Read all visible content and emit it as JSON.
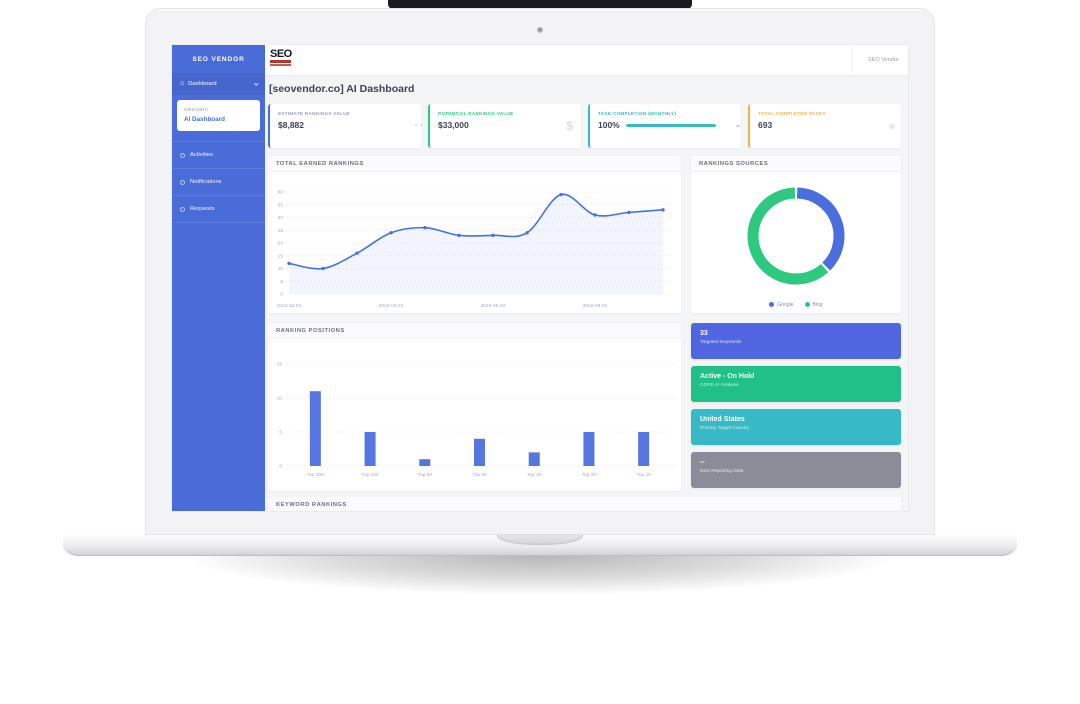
{
  "theme": {
    "sidebar_blue": "#4a6cd9",
    "accent_blue": "#4a6fdc",
    "accent_green": "#2dc97e",
    "accent_teal": "#38b9c6",
    "accent_orange": "#f0b24f"
  },
  "sidebar": {
    "brand": "SEO VENDOR",
    "menu": [
      {
        "label": "Dashboard",
        "icon": "home-icon",
        "expanded": true,
        "active": true
      }
    ],
    "submenu": {
      "section": "ORGANIC",
      "item": "AI Dashboard"
    },
    "items": [
      {
        "label": "Activities",
        "icon": "activities-icon"
      },
      {
        "label": "Notifications",
        "icon": "notifications-icon"
      },
      {
        "label": "Requests",
        "icon": "requests-icon"
      }
    ]
  },
  "topbar": {
    "logo_text": "SEO",
    "user_label": "SEO Vendor"
  },
  "page": {
    "title": "[seovendor.co] AI Dashboard"
  },
  "stats": [
    {
      "label": "ESTIMATE RANKINGS VALUE",
      "value": "$8,882",
      "accent": "#4a6fdc",
      "label_color": "#9aa1b8",
      "icon": "calendar-icon"
    },
    {
      "label": "POTENTIAL RANKINGS VALUE",
      "value": "$33,000",
      "accent": "#2dc97e",
      "label_color": "#2dc97e",
      "icon": "dollar-icon"
    },
    {
      "label": "TASK COMPLETION (MONTHLY)",
      "value": "100%",
      "accent": "#38b9c6",
      "label_color": "#38b9c6",
      "icon": "clipboard-icon",
      "progress": "100%"
    },
    {
      "label": "TOTAL COMPLETED TASKS",
      "value": "693",
      "accent": "#f0b24f",
      "label_color": "#f0b24f",
      "icon": "chat-icon"
    }
  ],
  "panels": {
    "keyword_title": "KEYWORD RANKINGS"
  },
  "info_cards": [
    {
      "title": "33",
      "subtitle": "Targeted Keywords",
      "color": "#5066e0"
    },
    {
      "title": "Active - On Hold",
      "subtitle": "CORE AI Analysis",
      "color": "#21c087"
    },
    {
      "title": "United States",
      "subtitle": "Primary Target Country",
      "color": "#38b9c6"
    },
    {
      "title": "--",
      "subtitle": "Next Reporting Date",
      "color": "#8a8d98"
    }
  ],
  "chart_data": [
    {
      "id": "earned-rankings",
      "type": "line",
      "title": "TOTAL EARNED RANKINGS",
      "values": [
        12,
        10,
        16,
        24,
        26,
        23,
        23,
        24,
        39,
        31,
        32,
        33
      ],
      "x_tick_indices": [
        0,
        3,
        6,
        9
      ],
      "x_tick_labels": [
        "2015-12-02",
        "2016-03-02",
        "2016-06-02",
        "2016-09-02"
      ],
      "ylim": [
        0,
        40
      ],
      "yticks": [
        0,
        5,
        10,
        15,
        20,
        25,
        30,
        35,
        40
      ],
      "line_color": "#4472e0",
      "fill_color": "rgba(74,111,220,0.07)",
      "grid": true,
      "legend_position": "none"
    },
    {
      "id": "rankings-sources",
      "type": "donut",
      "title": "RANKINGS SOURCES",
      "slices": [
        {
          "label": "Google",
          "value": 38,
          "color": "#4a6fdc"
        },
        {
          "label": "Bing",
          "value": 62,
          "color": "#2dc97e"
        }
      ],
      "legend_position": "bottom"
    },
    {
      "id": "ranking-positions",
      "type": "bar",
      "title": "RANKING POSITIONS",
      "categories": [
        "Top 200",
        "Top 100",
        "Top 50",
        "Top 40",
        "Top 30",
        "Top 20",
        "Top 10"
      ],
      "values": [
        11,
        5,
        1,
        4,
        2,
        5,
        5
      ],
      "ylim": [
        0,
        15
      ],
      "yticks": [
        0,
        5,
        10,
        15
      ],
      "bar_color": "#5576e0",
      "grid": true,
      "legend_position": "none"
    }
  ]
}
